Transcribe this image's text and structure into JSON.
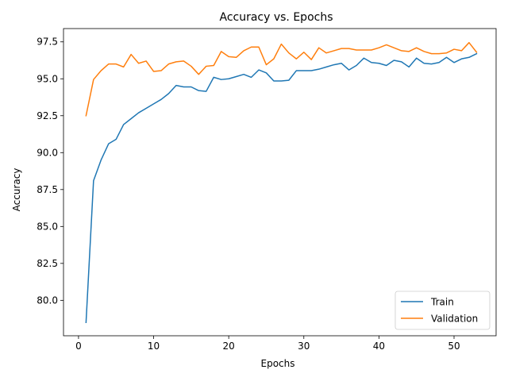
{
  "chart_data": {
    "type": "line",
    "title": "Accuracy vs. Epochs",
    "xlabel": "Epochs",
    "ylabel": "Accuracy",
    "xlim": [
      -2,
      55.6
    ],
    "ylim": [
      77.6,
      98.4
    ],
    "xticks": [
      0,
      10,
      20,
      30,
      40,
      50
    ],
    "yticks": [
      80.0,
      82.5,
      85.0,
      87.5,
      90.0,
      92.5,
      95.0,
      97.5
    ],
    "xtick_labels": [
      "0",
      "10",
      "20",
      "30",
      "40",
      "50"
    ],
    "ytick_labels": [
      "80.0",
      "82.5",
      "85.0",
      "87.5",
      "90.0",
      "92.5",
      "95.0",
      "97.5"
    ],
    "grid": false,
    "legend_position": "lower-right",
    "x": [
      1,
      2,
      3,
      4,
      5,
      6,
      7,
      8,
      9,
      10,
      11,
      12,
      13,
      14,
      15,
      16,
      17,
      18,
      19,
      20,
      21,
      22,
      23,
      24,
      25,
      26,
      27,
      28,
      29,
      30,
      31,
      32,
      33,
      34,
      35,
      36,
      37,
      38,
      39,
      40,
      41,
      42,
      43,
      44,
      45,
      46,
      47,
      48,
      49,
      50,
      51,
      52,
      53
    ],
    "series": [
      {
        "name": "Train",
        "color": "#1f77b4",
        "values": [
          78.5,
          88.1,
          89.5,
          90.6,
          90.9,
          91.9,
          92.3,
          92.7,
          93.0,
          93.3,
          93.6,
          94.0,
          94.55,
          94.45,
          94.45,
          94.2,
          94.15,
          95.1,
          94.95,
          95.0,
          95.15,
          95.3,
          95.1,
          95.6,
          95.4,
          94.85,
          94.85,
          94.9,
          95.55,
          95.55,
          95.55,
          95.65,
          95.8,
          95.95,
          96.05,
          95.6,
          95.9,
          96.4,
          96.1,
          96.05,
          95.9,
          96.25,
          96.15,
          95.8,
          96.4,
          96.05,
          96.0,
          96.1,
          96.45,
          96.1,
          96.35,
          96.45,
          96.7
        ]
      },
      {
        "name": "Validation",
        "color": "#ff7f0e",
        "values": [
          92.5,
          94.95,
          95.55,
          96.0,
          96.0,
          95.8,
          96.65,
          96.05,
          96.2,
          95.5,
          95.55,
          96.0,
          96.15,
          96.2,
          95.85,
          95.3,
          95.85,
          95.9,
          96.85,
          96.5,
          96.45,
          96.9,
          97.15,
          97.15,
          95.95,
          96.35,
          97.35,
          96.75,
          96.35,
          96.8,
          96.3,
          97.1,
          96.75,
          96.9,
          97.05,
          97.05,
          96.95,
          96.95,
          96.95,
          97.1,
          97.3,
          97.1,
          96.9,
          96.85,
          97.1,
          96.85,
          96.7,
          96.7,
          96.75,
          97.0,
          96.9,
          97.45,
          96.8
        ]
      }
    ]
  }
}
